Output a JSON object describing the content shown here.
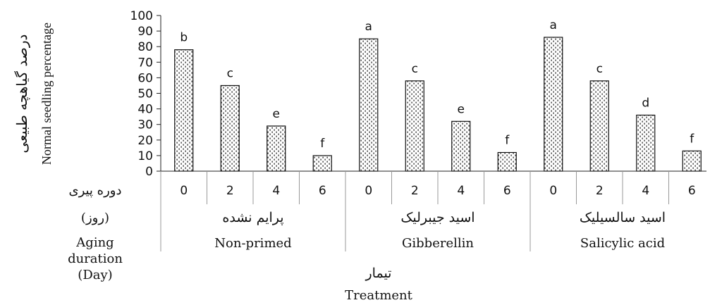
{
  "chart_data": {
    "type": "bar",
    "ylabel_fa": "درصد گیاهچه طبیعی",
    "ylabel_en": "Normal seedling percentage",
    "ylim": [
      0,
      100
    ],
    "yticks": [
      "0",
      "10",
      "20",
      "30",
      "40",
      "50",
      "60",
      "70",
      "80",
      "90",
      "100"
    ],
    "category_row_label_fa": "دوره پیری",
    "category_row_unit_fa": "(روز)",
    "category_row_label_en": [
      "Aging",
      "duration",
      "(Day)"
    ],
    "xlabel_fa": "تیمار",
    "xlabel_en": "Treatment",
    "bar_pattern_color": "#111111",
    "groups": [
      {
        "name_fa": "پرایم نشده",
        "name_en": "Non-primed",
        "categories": [
          "0",
          "2",
          "4",
          "6"
        ],
        "values": [
          78,
          55,
          29,
          10
        ],
        "letters": [
          "b",
          "c",
          "e",
          "f"
        ]
      },
      {
        "name_fa": "اسید جیبرلیک",
        "name_en": "Gibberellin",
        "categories": [
          "0",
          "2",
          "4",
          "6"
        ],
        "values": [
          85,
          58,
          32,
          12
        ],
        "letters": [
          "a",
          "c",
          "e",
          "f"
        ]
      },
      {
        "name_fa": "اسید سالسیلیک",
        "name_en": "Salicylic acid",
        "categories": [
          "0",
          "2",
          "4",
          "6"
        ],
        "values": [
          86,
          58,
          36,
          13
        ],
        "letters": [
          "a",
          "c",
          "d",
          "f"
        ]
      }
    ]
  }
}
